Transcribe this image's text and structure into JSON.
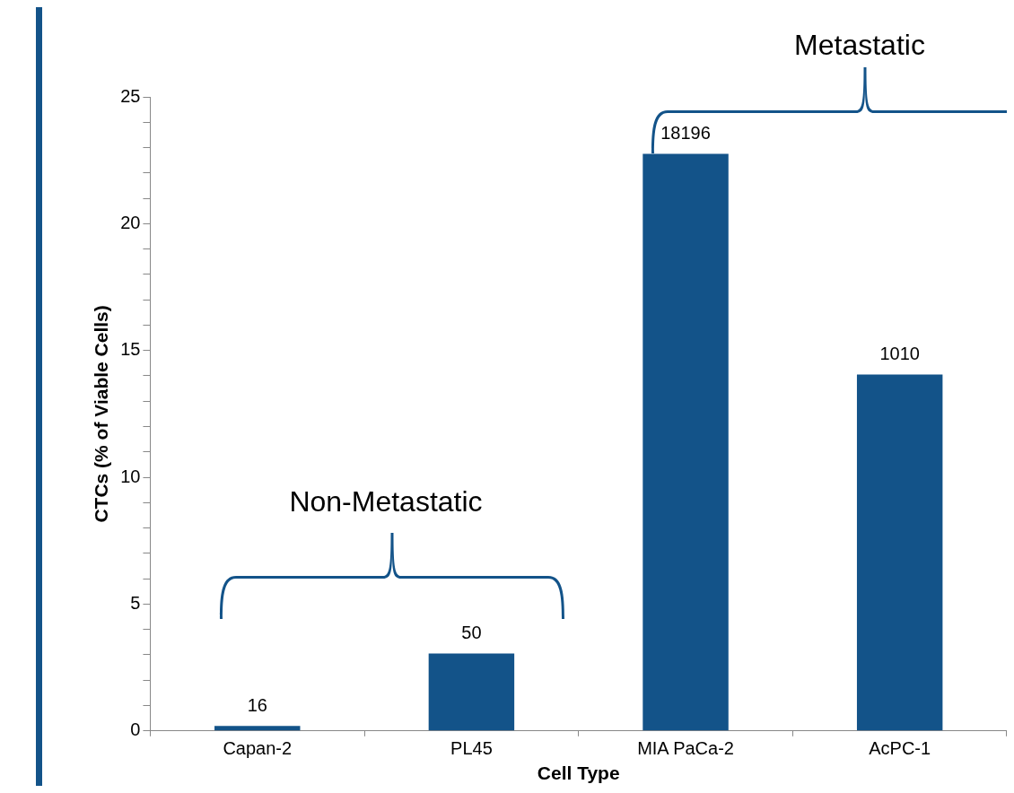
{
  "chart_data": {
    "type": "bar",
    "xlabel": "Cell Type",
    "ylabel": "CTCs (% of Viable Cells)",
    "categories": [
      "Capan-2",
      "PL45",
      "MIA PaCa-2",
      "AcPC-1"
    ],
    "values": [
      0.2,
      3.05,
      22.75,
      14.05
    ],
    "color": "#135389",
    "ylim": [
      0,
      25
    ],
    "yticks": [
      0,
      {
        "value": 1,
        "label": null
      },
      {
        "value": 2,
        "label": null
      },
      {
        "value": 3,
        "label": null
      },
      {
        "value": 4,
        "label": null
      },
      5,
      {
        "value": 6,
        "label": null
      },
      {
        "value": 7,
        "label": null
      },
      {
        "value": 8,
        "label": null
      },
      {
        "value": 9,
        "label": null
      },
      10,
      {
        "value": 11,
        "label": null
      },
      {
        "value": 12,
        "label": null
      },
      {
        "value": 13,
        "label": null
      },
      {
        "value": 14,
        "label": null
      },
      15,
      {
        "value": 16,
        "label": null
      },
      {
        "value": 17,
        "label": null
      },
      {
        "value": 18,
        "label": null
      },
      {
        "value": 19,
        "label": null
      },
      20,
      {
        "value": 21,
        "label": null
      },
      {
        "value": 22,
        "label": null
      },
      {
        "value": 23,
        "label": null
      },
      {
        "value": 24,
        "label": null
      },
      25
    ],
    "annotations": [
      "Non-Metastatic",
      "Metastatic",
      {
        "text": "16",
        "x": "Capan-2",
        "y": 0.2
      },
      {
        "text": "50",
        "x": "PL45",
        "y": 3.05
      },
      {
        "text": "18196",
        "x": "MIA PaCa-2",
        "y": 22.75
      },
      {
        "text": "1010",
        "x": "AcPC-1",
        "y": 14.05
      }
    ],
    "grid": false,
    "legend": false
  }
}
